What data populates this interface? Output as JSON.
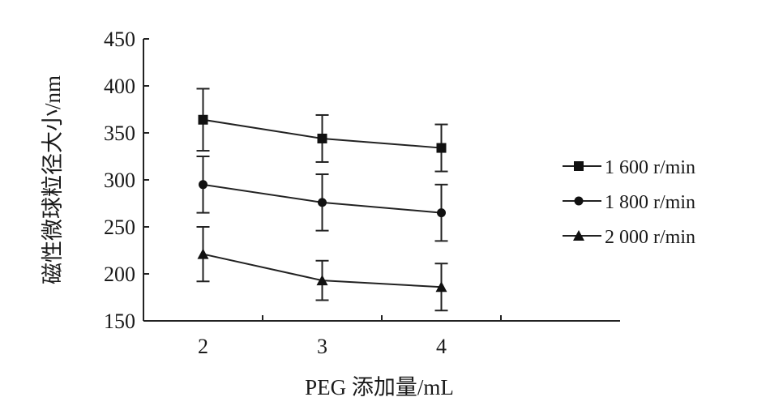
{
  "chart_data": {
    "type": "line",
    "xlabel": "PEG 添加量/mL",
    "ylabel": "磁性微球粒径大小/nm",
    "x": [
      2,
      3,
      4
    ],
    "x_tick_labels": [
      "2",
      "3",
      "4"
    ],
    "xlim": [
      1.5,
      5.5
    ],
    "ylim": [
      150,
      450
    ],
    "y_ticks": [
      150,
      200,
      250,
      300,
      350,
      400,
      450
    ],
    "y_tick_labels": [
      "150",
      "200",
      "250",
      "300",
      "350",
      "400",
      "450"
    ],
    "grid": false,
    "legend_position": "right",
    "series": [
      {
        "name": "1 600 r/min",
        "marker": "square",
        "values": [
          364,
          344,
          334
        ],
        "error": [
          33,
          25,
          25
        ]
      },
      {
        "name": "1 800 r/min",
        "marker": "diamond",
        "values": [
          295,
          276,
          265
        ],
        "error": [
          30,
          30,
          30
        ]
      },
      {
        "name": "2 000 r/min",
        "marker": "triangle",
        "values": [
          221,
          193,
          186
        ],
        "error": [
          29,
          21,
          25
        ]
      }
    ]
  }
}
